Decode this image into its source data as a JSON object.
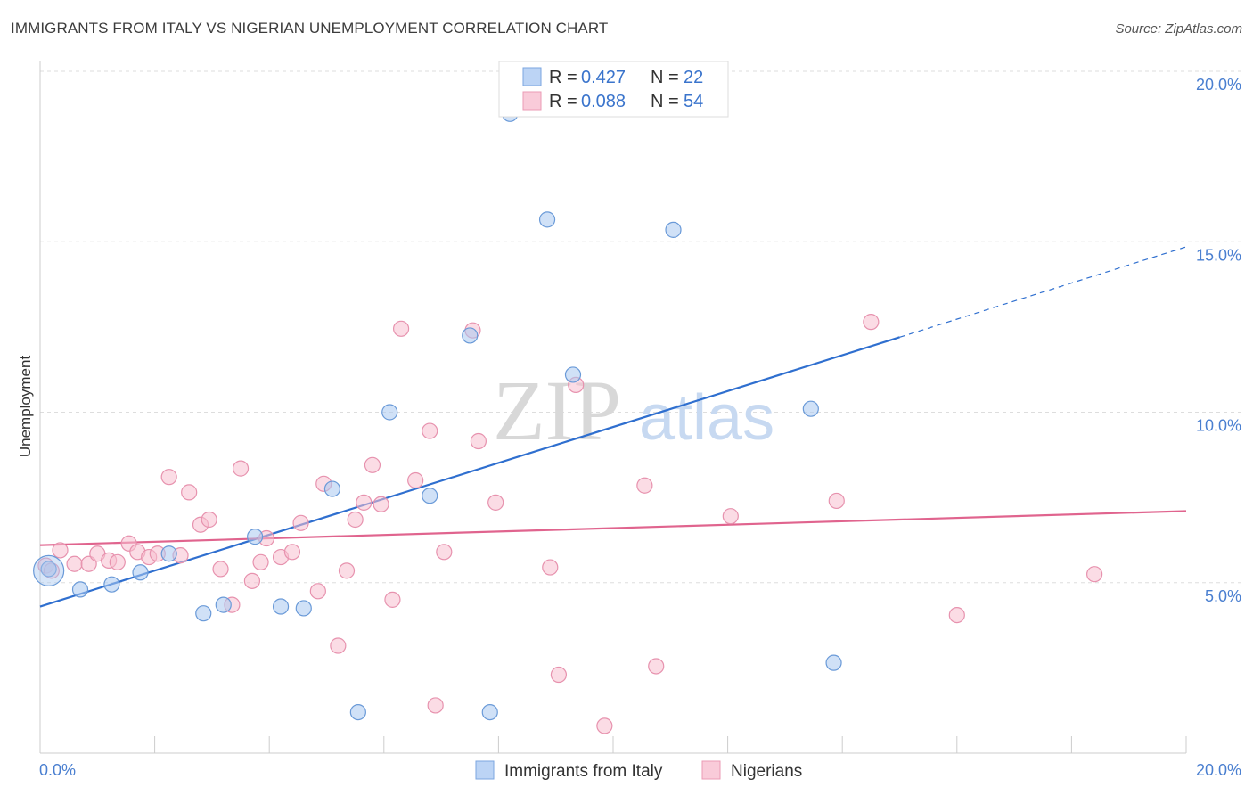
{
  "title": "IMMIGRANTS FROM ITALY VS NIGERIAN UNEMPLOYMENT CORRELATION CHART",
  "source": "Source: ZipAtlas.com",
  "watermark": {
    "zip": "ZIP",
    "atlas": "atlas"
  },
  "colors": {
    "italy_fill": "#a9c8f0",
    "italy_stroke": "#6a9ad8",
    "italy_line": "#2f6fcf",
    "nigeria_fill": "#f7bfd0",
    "nigeria_stroke": "#e792ae",
    "nigeria_line": "#e0648e",
    "grid": "#dddddd",
    "tick_text": "#4a7fd0"
  },
  "legend": {
    "rows": [
      {
        "r_label": "R =",
        "r_value": "0.427",
        "n_label": "N =",
        "n_value": "22"
      },
      {
        "r_label": "R =",
        "r_value": "0.088",
        "n_label": "N =",
        "n_value": "54"
      }
    ]
  },
  "chart_data": {
    "type": "scatter",
    "title": "IMMIGRANTS FROM ITALY VS NIGERIAN UNEMPLOYMENT CORRELATION CHART",
    "xlabel": "",
    "ylabel": "Unemployment",
    "xlim": [
      0,
      20
    ],
    "ylim": [
      0,
      20
    ],
    "x_tick_labels": [
      "0.0%",
      "20.0%"
    ],
    "y_ticks": [
      5,
      10,
      15,
      20
    ],
    "y_tick_labels": [
      "5.0%",
      "10.0%",
      "15.0%",
      "20.0%"
    ],
    "grid": true,
    "legend_position": "top-center",
    "series": [
      {
        "name": "Immigrants from Italy",
        "points": [
          [
            0.15,
            5.4
          ],
          [
            0.7,
            4.8
          ],
          [
            1.25,
            4.95
          ],
          [
            1.75,
            5.3
          ],
          [
            2.25,
            5.85
          ],
          [
            2.85,
            4.1
          ],
          [
            3.2,
            4.35
          ],
          [
            3.75,
            6.35
          ],
          [
            4.2,
            4.3
          ],
          [
            4.6,
            4.25
          ],
          [
            5.1,
            7.75
          ],
          [
            5.55,
            1.2
          ],
          [
            6.1,
            10.0
          ],
          [
            6.8,
            7.55
          ],
          [
            7.5,
            12.25
          ],
          [
            7.85,
            1.2
          ],
          [
            8.2,
            18.75
          ],
          [
            8.85,
            15.65
          ],
          [
            9.3,
            11.1
          ],
          [
            11.05,
            15.35
          ],
          [
            13.45,
            10.1
          ],
          [
            13.85,
            2.65
          ]
        ],
        "trend": {
          "x0": 0,
          "y0": 4.3,
          "x1": 15.0,
          "y1": 12.2,
          "dash_x1": 20.0,
          "dash_y1": 14.85
        }
      },
      {
        "name": "Nigerians",
        "points": [
          [
            0.1,
            5.5
          ],
          [
            0.35,
            5.95
          ],
          [
            0.6,
            5.55
          ],
          [
            0.85,
            5.55
          ],
          [
            1.0,
            5.85
          ],
          [
            1.2,
            5.65
          ],
          [
            1.35,
            5.6
          ],
          [
            1.55,
            6.15
          ],
          [
            1.7,
            5.9
          ],
          [
            1.9,
            5.75
          ],
          [
            2.05,
            5.85
          ],
          [
            2.25,
            8.1
          ],
          [
            2.45,
            5.8
          ],
          [
            2.6,
            7.65
          ],
          [
            2.8,
            6.7
          ],
          [
            2.95,
            6.85
          ],
          [
            3.15,
            5.4
          ],
          [
            3.35,
            4.35
          ],
          [
            3.5,
            8.35
          ],
          [
            3.7,
            5.05
          ],
          [
            3.85,
            5.6
          ],
          [
            3.95,
            6.3
          ],
          [
            4.2,
            5.75
          ],
          [
            4.4,
            5.9
          ],
          [
            4.55,
            6.75
          ],
          [
            4.85,
            4.75
          ],
          [
            4.95,
            7.9
          ],
          [
            5.2,
            3.15
          ],
          [
            5.35,
            5.35
          ],
          [
            5.5,
            6.85
          ],
          [
            5.65,
            7.35
          ],
          [
            5.8,
            8.45
          ],
          [
            5.95,
            7.3
          ],
          [
            6.15,
            4.5
          ],
          [
            6.3,
            12.45
          ],
          [
            6.55,
            8.0
          ],
          [
            6.8,
            9.45
          ],
          [
            6.9,
            1.4
          ],
          [
            7.05,
            5.9
          ],
          [
            7.55,
            12.4
          ],
          [
            7.65,
            9.15
          ],
          [
            7.95,
            7.35
          ],
          [
            8.9,
            5.45
          ],
          [
            9.05,
            2.3
          ],
          [
            9.35,
            10.8
          ],
          [
            9.85,
            0.8
          ],
          [
            10.55,
            7.85
          ],
          [
            10.75,
            2.55
          ],
          [
            12.05,
            6.95
          ],
          [
            13.9,
            7.4
          ],
          [
            14.5,
            12.65
          ],
          [
            16.0,
            4.05
          ],
          [
            18.4,
            5.25
          ],
          [
            0.2,
            5.35
          ]
        ],
        "trend": {
          "x0": 0,
          "y0": 6.1,
          "x1": 20.0,
          "y1": 7.1
        }
      }
    ]
  }
}
